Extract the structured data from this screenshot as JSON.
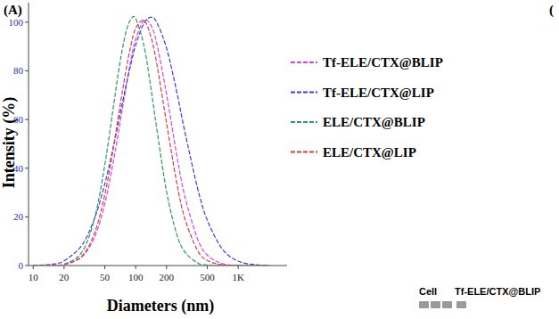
{
  "chart_data": {
    "type": "line",
    "xlabel": "Diameters (nm)",
    "ylabel": "Intensity (%)",
    "log": "x",
    "grid": false,
    "legend": "right",
    "line_style": "dashed",
    "annotations": [
      "(A)",
      "(",
      "Cell",
      "Tf-ELE/CTX@BLIP"
    ],
    "x": [
      10,
      15,
      20,
      30,
      40,
      50,
      60,
      70,
      80,
      90,
      100,
      120,
      140,
      160,
      200,
      250,
      300,
      400,
      500,
      700,
      1000,
      1500,
      2000
    ],
    "xlim": [
      9,
      3000
    ],
    "xticks": [
      10,
      20,
      50,
      100,
      200,
      500,
      {
        "value": 1000,
        "label": "1K"
      }
    ],
    "ylim": [
      0,
      108
    ],
    "yticks": [
      0,
      20,
      40,
      60,
      80,
      100
    ],
    "series": [
      {
        "name": "Tf-ELE/CTX@BLIP",
        "color": "#e040e0",
        "values": [
          0,
          0.06,
          0.4,
          3.6,
          12,
          25.5,
          41.9,
          58,
          72.7,
          84.6,
          93,
          100.7,
          98.9,
          91.5,
          70.4,
          46,
          28.9,
          11.1,
          4.3,
          0.8,
          0.08,
          0,
          0
        ]
      },
      {
        "name": "Tf-ELE/CTX@LIP",
        "color": "#3a3ae6",
        "values": [
          0.07,
          0.5,
          1.9,
          8.5,
          19.8,
          33.6,
          48,
          61.6,
          73.5,
          83,
          90.6,
          99.5,
          102,
          100,
          89.3,
          71.9,
          55.5,
          32.1,
          18.6,
          6.8,
          1.8,
          0.3,
          0
        ]
      },
      {
        "name": "ELE/CTX@BLIP",
        "color": "#2a9a5a",
        "values": [
          0,
          0.06,
          0.5,
          5.6,
          20,
          41.5,
          64,
          83,
          95.6,
          101.3,
          101.4,
          90.6,
          73.6,
          56.6,
          30.4,
          13.2,
          5.7,
          1.1,
          0.25,
          0,
          0,
          0,
          0
        ]
      },
      {
        "name": "ELE/CTX@LIP",
        "color": "#d04040",
        "values": [
          0,
          0.06,
          0.4,
          4,
          13.8,
          29.2,
          47.4,
          65,
          79.8,
          90.6,
          97.5,
          100.7,
          94.4,
          83.3,
          58.6,
          34.6,
          19.6,
          6.3,
          2.1,
          0.3,
          0,
          0,
          0
        ]
      }
    ]
  }
}
